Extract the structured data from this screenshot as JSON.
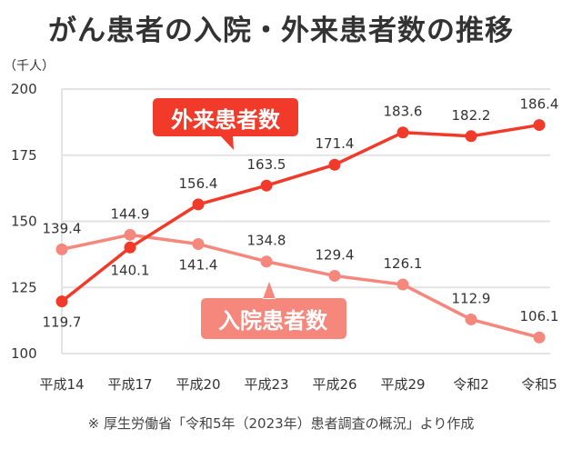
{
  "title": "がん患者の入院・外来患者数の推移",
  "unit_label": "（千人）",
  "footnote": "※ 厚生労働省「令和5年（2023年）患者調査の概況」より作成",
  "colors": {
    "outpatient": "#f23a2a",
    "inpatient": "#f5877c",
    "grid": "#e3e3e3",
    "text": "#333333"
  },
  "callouts": {
    "outpatient": "外来患者数",
    "inpatient": "入院患者数"
  },
  "chart_data": {
    "type": "line",
    "title": "がん患者の入院・外来患者数の推移",
    "xlabel": "",
    "ylabel": "（千人）",
    "ylim": [
      100,
      200
    ],
    "yticks": [
      100,
      125,
      150,
      175,
      200
    ],
    "grid": true,
    "categories": [
      "平成14",
      "平成17",
      "平成20",
      "平成23",
      "平成26",
      "平成29",
      "令和2",
      "令和5"
    ],
    "series": [
      {
        "name": "外来患者数",
        "color": "#f23a2a",
        "values": [
          119.7,
          140.1,
          156.4,
          163.5,
          171.4,
          183.6,
          182.2,
          186.4
        ]
      },
      {
        "name": "入院患者数",
        "color": "#f5877c",
        "values": [
          139.4,
          144.9,
          141.4,
          134.8,
          129.4,
          126.1,
          112.9,
          106.1
        ]
      }
    ],
    "annotations": [
      "外来患者数",
      "入院患者数"
    ],
    "source": "※ 厚生労働省「令和5年（2023年）患者調査の概況」より作成"
  }
}
